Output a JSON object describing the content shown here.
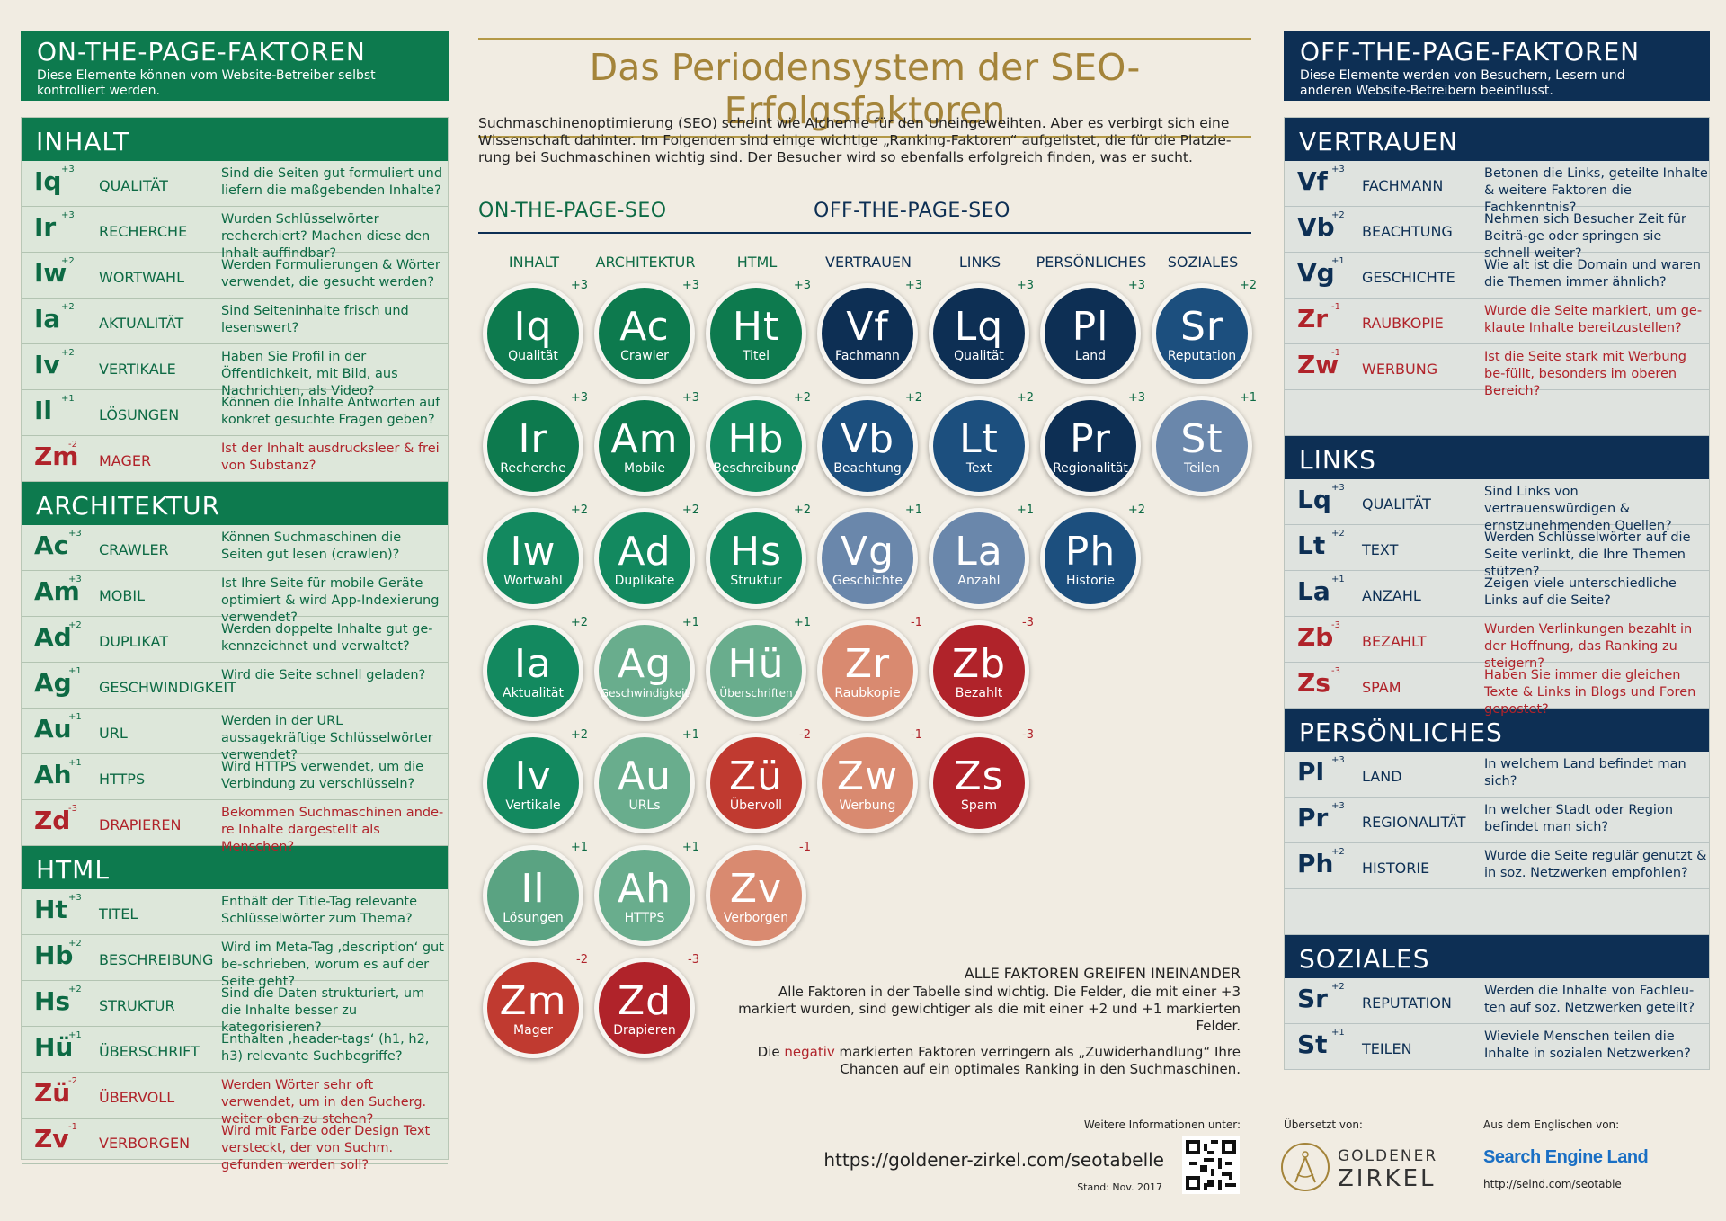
{
  "title": "Das Periodensystem der SEO-Erfolgsfaktoren",
  "intro": "Suchmaschinenoptimierung (SEO) scheint wie Alchemie für den Uneingeweihten. Aber es verbirgt sich eine Wissenschaft dahinter. Im Folgenden sind einige wichtige „Ranking-Faktoren“ aufgelistet, die für die Platzie-rung bei Suchmaschinen wichtig sind. Der Besucher wird so ebenfalls erfolgreich finden, was er sucht.",
  "colors": {
    "green": "#0d7a4e",
    "navy": "#0d2f54",
    "red": "#b0232a",
    "gold": "#a4843a"
  },
  "left": {
    "title": "ON-THE-PAGE-FAKTOREN",
    "subtitle": "Diese Elemente können vom Website-Betreiber selbst kontrolliert werden.",
    "sections": [
      {
        "title": "INHALT",
        "rows": [
          {
            "sym": "Iq",
            "w": "+3",
            "name": "QUALITÄT",
            "q": "Sind die Seiten gut formuliert und liefern die maßgebenden Inhalte?"
          },
          {
            "sym": "Ir",
            "w": "+3",
            "name": "RECHERCHE",
            "q": "Wurden Schlüsselwörter recherchiert? Machen diese den Inhalt auffindbar?"
          },
          {
            "sym": "Iw",
            "w": "+2",
            "name": "WORTWAHL",
            "q": "Werden Formulierungen & Wörter verwendet, die gesucht werden?"
          },
          {
            "sym": "Ia",
            "w": "+2",
            "name": "AKTUALITÄT",
            "q": "Sind Seiteninhalte frisch und lesenswert?"
          },
          {
            "sym": "Iv",
            "w": "+2",
            "name": "VERTIKALE",
            "q": "Haben Sie Profil in der Öffentlichkeit, mit Bild, aus Nachrichten, als Video?"
          },
          {
            "sym": "Il",
            "w": "+1",
            "name": "LÖSUNGEN",
            "q": "Können die Inhalte Antworten auf konkret gesuchte Fragen geben?"
          },
          {
            "sym": "Zm",
            "w": "-2",
            "name": "MAGER",
            "q": "Ist der Inhalt ausdrucksleer & frei von Substanz?",
            "neg": true
          }
        ]
      },
      {
        "title": "ARCHITEKTUR",
        "rows": [
          {
            "sym": "Ac",
            "w": "+3",
            "name": "CRAWLER",
            "q": "Können Suchmaschinen die Seiten gut lesen (crawlen)?"
          },
          {
            "sym": "Am",
            "w": "+3",
            "name": "MOBIL",
            "q": "Ist Ihre Seite für mobile Geräte optimiert & wird App-Indexierung verwendet?"
          },
          {
            "sym": "Ad",
            "w": "+2",
            "name": "DUPLIKAT",
            "q": "Werden doppelte Inhalte gut ge-kennzeichnet und verwaltet?"
          },
          {
            "sym": "Ag",
            "w": "+1",
            "name": "GESCHWINDIGKEIT",
            "q": "Wird die Seite schnell geladen?"
          },
          {
            "sym": "Au",
            "w": "+1",
            "name": "URL",
            "q": "Werden in der URL aussagekräftige Schlüsselwörter verwendet?"
          },
          {
            "sym": "Ah",
            "w": "+1",
            "name": "HTTPS",
            "q": "Wird HTTPS verwendet, um die Verbindung zu verschlüsseln?"
          },
          {
            "sym": "Zd",
            "w": "-3",
            "name": "DRAPIEREN",
            "q": "Bekommen Suchmaschinen ande-re Inhalte dargestellt als Menschen?",
            "neg": true
          }
        ]
      },
      {
        "title": "HTML",
        "rows": [
          {
            "sym": "Ht",
            "w": "+3",
            "name": "TITEL",
            "q": "Enthält der Title-Tag relevante Schlüsselwörter zum Thema?"
          },
          {
            "sym": "Hb",
            "w": "+2",
            "name": "BESCHREIBUNG",
            "q": "Wird im Meta-Tag ‚description‘ gut be-schrieben, worum es auf der Seite geht?"
          },
          {
            "sym": "Hs",
            "w": "+2",
            "name": "STRUKTUR",
            "q": "Sind die Daten strukturiert, um die Inhalte besser zu kategorisieren?"
          },
          {
            "sym": "Hü",
            "w": "+1",
            "name": "ÜBERSCHRIFT",
            "q": "Enthalten ‚header-tags‘ (h1, h2, h3) relevante Suchbegriffe?"
          },
          {
            "sym": "Zü",
            "w": "-2",
            "name": "ÜBERVOLL",
            "q": "Werden Wörter sehr oft verwendet, um in den Sucherg. weiter oben zu stehen?",
            "neg": true
          },
          {
            "sym": "Zv",
            "w": "-1",
            "name": "VERBORGEN",
            "q": "Wird mit Farbe oder Design Text versteckt, der von Suchm. gefunden werden soll?",
            "neg": true
          }
        ]
      }
    ]
  },
  "right": {
    "title": "OFF-THE-PAGE-FAKTOREN",
    "subtitle": "Diese Elemente werden von Besuchern, Lesern und anderen Website-Betreibern beeinflusst.",
    "sections": [
      {
        "title": "VERTRAUEN",
        "rows": [
          {
            "sym": "Vf",
            "w": "+3",
            "name": "FACHMANN",
            "q": "Betonen die Links, geteilte Inhalte & weitere Faktoren die Fachkenntnis?"
          },
          {
            "sym": "Vb",
            "w": "+2",
            "name": "BEACHTUNG",
            "q": "Nehmen sich Besucher Zeit für Beiträ-ge oder springen sie schnell weiter?"
          },
          {
            "sym": "Vg",
            "w": "+1",
            "name": "GESCHICHTE",
            "q": "Wie alt ist die Domain und waren die Themen immer ähnlich?"
          },
          {
            "sym": "Zr",
            "w": "-1",
            "name": "RAUBKOPIE",
            "q": "Wurde die Seite markiert, um ge-klaute Inhalte bereitzustellen?",
            "neg": true
          },
          {
            "sym": "Zw",
            "w": "-1",
            "name": "WERBUNG",
            "q": "Ist die Seite stark mit Werbung be-füllt, besonders im oberen Bereich?",
            "neg": true
          }
        ]
      },
      {
        "title": "LINKS",
        "rows": [
          {
            "sym": "Lq",
            "w": "+3",
            "name": "QUALITÄT",
            "q": "Sind Links von vertrauenswürdigen & ernstzunehmenden Quellen?"
          },
          {
            "sym": "Lt",
            "w": "+2",
            "name": "TEXT",
            "q": "Werden Schlüsselwörter auf die Seite verlinkt, die Ihre Themen stützen?"
          },
          {
            "sym": "La",
            "w": "+1",
            "name": "ANZAHL",
            "q": "Zeigen viele unterschiedliche Links auf die Seite?"
          },
          {
            "sym": "Zb",
            "w": "-3",
            "name": "BEZAHLT",
            "q": "Wurden Verlinkungen bezahlt in der Hoffnung, das Ranking zu steigern?",
            "neg": true
          },
          {
            "sym": "Zs",
            "w": "-3",
            "name": "SPAM",
            "q": "Haben Sie immer die gleichen Texte & Links in Blogs und Foren gepostet?",
            "neg": true
          }
        ]
      },
      {
        "title": "PERSÖNLICHES",
        "rows": [
          {
            "sym": "Pl",
            "w": "+3",
            "name": "LAND",
            "q": "In welchem Land befindet man sich?"
          },
          {
            "sym": "Pr",
            "w": "+3",
            "name": "REGIONALITÄT",
            "q": "In welcher Stadt oder Region befindet man sich?"
          },
          {
            "sym": "Ph",
            "w": "+2",
            "name": "HISTORIE",
            "q": "Wurde die Seite regulär genutzt & in soz. Netzwerken empfohlen?"
          }
        ]
      },
      {
        "title": "SOZIALES",
        "rows": [
          {
            "sym": "Sr",
            "w": "+2",
            "name": "REPUTATION",
            "q": "Werden die Inhalte von Fachleu-ten auf soz. Netzwerken geteilt?"
          },
          {
            "sym": "St",
            "w": "+1",
            "name": "TEILEN",
            "q": "Wieviele Menschen teilen die Inhalte in sozialen Netzwerken?"
          }
        ]
      }
    ]
  },
  "center": {
    "on_label": "ON-THE-PAGE-SEO",
    "off_label": "OFF-THE-PAGE-SEO",
    "columns": [
      "INHALT",
      "ARCHITEKTUR",
      "HTML",
      "VERTRAUEN",
      "LINKS",
      "PERSÖNLICHES",
      "SOZIALES"
    ],
    "tiles": [
      [
        {
          "s": "Iq",
          "l": "Qualität",
          "w": "+3",
          "c": "#0d7a4e"
        },
        {
          "s": "Ir",
          "l": "Recherche",
          "w": "+3",
          "c": "#0d7a4e"
        },
        {
          "s": "Iw",
          "l": "Wortwahl",
          "w": "+2",
          "c": "#13895f"
        },
        {
          "s": "Ia",
          "l": "Aktualität",
          "w": "+2",
          "c": "#13895f"
        },
        {
          "s": "Iv",
          "l": "Vertikale",
          "w": "+2",
          "c": "#13895f"
        },
        {
          "s": "Il",
          "l": "Lösungen",
          "w": "+1",
          "c": "#5aa382"
        },
        {
          "s": "Zm",
          "l": "Mager",
          "w": "-2",
          "c": "#c03a30"
        }
      ],
      [
        {
          "s": "Ac",
          "l": "Crawler",
          "w": "+3",
          "c": "#0d7a4e"
        },
        {
          "s": "Am",
          "l": "Mobile",
          "w": "+3",
          "c": "#0d7a4e"
        },
        {
          "s": "Ad",
          "l": "Duplikate",
          "w": "+2",
          "c": "#13895f"
        },
        {
          "s": "Ag",
          "l": "Geschwindigkeit",
          "w": "+1",
          "c": "#69ad8d"
        },
        {
          "s": "Au",
          "l": "URLs",
          "w": "+1",
          "c": "#69ad8d"
        },
        {
          "s": "Ah",
          "l": "HTTPS",
          "w": "+1",
          "c": "#69ad8d"
        },
        {
          "s": "Zd",
          "l": "Drapieren",
          "w": "-3",
          "c": "#b0232a"
        }
      ],
      [
        {
          "s": "Ht",
          "l": "Titel",
          "w": "+3",
          "c": "#0d7a4e"
        },
        {
          "s": "Hb",
          "l": "Beschreibung",
          "w": "+2",
          "c": "#13895f"
        },
        {
          "s": "Hs",
          "l": "Struktur",
          "w": "+2",
          "c": "#13895f"
        },
        {
          "s": "Hü",
          "l": "Überschriften",
          "w": "+1",
          "c": "#69ad8d"
        },
        {
          "s": "Zü",
          "l": "Übervoll",
          "w": "-2",
          "c": "#c03a30"
        },
        {
          "s": "Zv",
          "l": "Verborgen",
          "w": "-1",
          "c": "#d98a70"
        }
      ],
      [
        {
          "s": "Vf",
          "l": "Fachmann",
          "w": "+3",
          "c": "#0d2f54"
        },
        {
          "s": "Vb",
          "l": "Beachtung",
          "w": "+2",
          "c": "#1c4f7e"
        },
        {
          "s": "Vg",
          "l": "Geschichte",
          "w": "+1",
          "c": "#6a87ab"
        },
        {
          "s": "Zr",
          "l": "Raubkopie",
          "w": "-1",
          "c": "#d98a70"
        },
        {
          "s": "Zw",
          "l": "Werbung",
          "w": "-1",
          "c": "#d98a70"
        }
      ],
      [
        {
          "s": "Lq",
          "l": "Qualität",
          "w": "+3",
          "c": "#0d2f54"
        },
        {
          "s": "Lt",
          "l": "Text",
          "w": "+2",
          "c": "#1c4f7e"
        },
        {
          "s": "La",
          "l": "Anzahl",
          "w": "+1",
          "c": "#6a87ab"
        },
        {
          "s": "Zb",
          "l": "Bezahlt",
          "w": "-3",
          "c": "#b0232a"
        },
        {
          "s": "Zs",
          "l": "Spam",
          "w": "-3",
          "c": "#b0232a"
        }
      ],
      [
        {
          "s": "Pl",
          "l": "Land",
          "w": "+3",
          "c": "#0d2f54"
        },
        {
          "s": "Pr",
          "l": "Regionalität",
          "w": "+3",
          "c": "#0d2f54"
        },
        {
          "s": "Ph",
          "l": "Historie",
          "w": "+2",
          "c": "#1c4f7e"
        }
      ],
      [
        {
          "s": "Sr",
          "l": "Reputation",
          "w": "+2",
          "c": "#1c4f7e"
        },
        {
          "s": "St",
          "l": "Teilen",
          "w": "+1",
          "c": "#6a87ab"
        }
      ]
    ]
  },
  "note": {
    "heading": "ALLE FAKTOREN GREIFEN INEINANDER",
    "p1": "Alle Faktoren in der Tabelle sind wichtig. Die Felder, die mit einer +3 markiert wurden, sind gewichtiger als die mit einer +2 und +1 markierten Felder.",
    "p2_a": "Die",
    "p2_neg": "negativ",
    "p2_b": "markierten Faktoren verringern als „Zuwiderhandlung“ Ihre Chancen auf ein optimales Ranking in den Suchmaschinen."
  },
  "footer": {
    "more_info": "Weitere Informationen unter:",
    "url": "https://goldener-zirkel.com/seotabelle",
    "stand": "Stand: Nov. 2017",
    "translated": "Übersetzt von:",
    "gz1": "GOLDENER",
    "gz2": "ZIRKEL",
    "from_en": "Aus dem Englischen von:",
    "sel": "Search Engine Land",
    "sel_url": "http://selnd.com/seotable"
  }
}
